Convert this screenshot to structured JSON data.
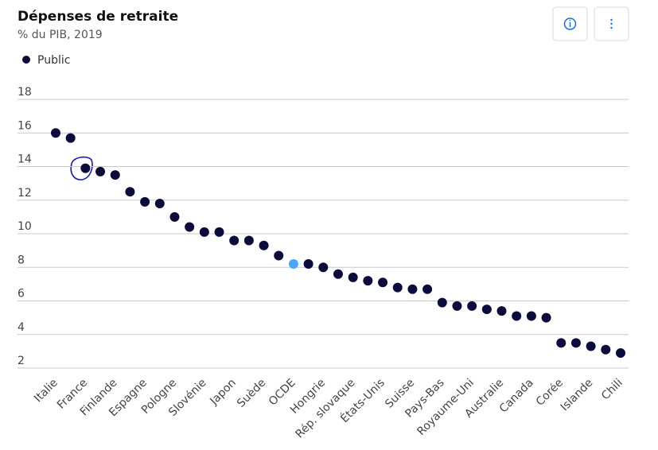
{
  "chart_data": {
    "type": "scatter",
    "title": "Dépenses de retraite",
    "subtitle": "% du PIB, 2019",
    "categories": [
      "Italie",
      null,
      "France",
      null,
      "Finlande",
      null,
      "Espagne",
      null,
      "Pologne",
      null,
      "Slovénie",
      null,
      "Japon",
      null,
      "Suède",
      null,
      "OCDE",
      null,
      "Hongrie",
      null,
      "Rép. slovaque",
      null,
      "États-Unis",
      null,
      "Suisse",
      null,
      "Pays-Bas",
      null,
      "Royaume-Uni",
      null,
      "Australie",
      null,
      "Canada",
      null,
      "Corée",
      null,
      "Islande",
      null,
      "Chili"
    ],
    "series": [
      {
        "name": "Public",
        "color": "#0c0c3c",
        "values": [
          16.0,
          15.7,
          13.9,
          13.7,
          13.5,
          12.5,
          11.9,
          11.8,
          11.0,
          10.4,
          10.1,
          10.1,
          9.6,
          9.6,
          9.3,
          8.7,
          8.2,
          8.2,
          8.0,
          7.6,
          7.4,
          7.2,
          7.1,
          6.8,
          6.7,
          6.7,
          5.9,
          5.7,
          5.7,
          5.5,
          5.4,
          5.1,
          5.1,
          5.0,
          3.5,
          3.5,
          3.3,
          3.1,
          2.9
        ],
        "point_colors": [
          "#0c0c3c",
          "#0c0c3c",
          "#0c0c3c",
          "#0c0c3c",
          "#0c0c3c",
          "#0c0c3c",
          "#0c0c3c",
          "#0c0c3c",
          "#0c0c3c",
          "#0c0c3c",
          "#0c0c3c",
          "#0c0c3c",
          "#0c0c3c",
          "#0c0c3c",
          "#0c0c3c",
          "#0c0c3c",
          "#4da6f5",
          "#0c0c3c",
          "#0c0c3c",
          "#0c0c3c",
          "#0c0c3c",
          "#0c0c3c",
          "#0c0c3c",
          "#0c0c3c",
          "#0c0c3c",
          "#0c0c3c",
          "#0c0c3c",
          "#0c0c3c",
          "#0c0c3c",
          "#0c0c3c",
          "#0c0c3c",
          "#0c0c3c",
          "#0c0c3c",
          "#0c0c3c",
          "#0c0c3c",
          "#0c0c3c",
          "#0c0c3c",
          "#0c0c3c",
          "#0c0c3c"
        ]
      }
    ],
    "ylim": [
      2,
      18
    ],
    "yticks": [
      2,
      4,
      6,
      8,
      10,
      12,
      14,
      16,
      18
    ],
    "grid": true
  }
}
